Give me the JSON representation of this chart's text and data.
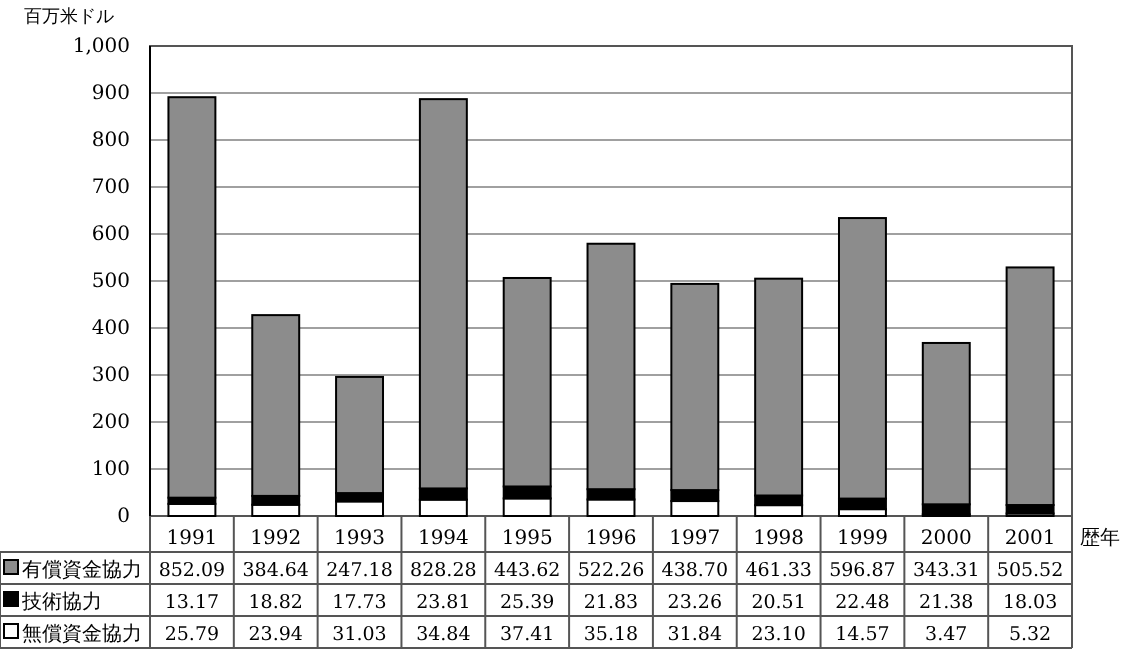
{
  "chart_data": {
    "type": "bar",
    "stacked": true,
    "ylabel": "百万米ドル",
    "xlabel": "歴年",
    "categories": [
      "1991",
      "1992",
      "1993",
      "1994",
      "1995",
      "1996",
      "1997",
      "1998",
      "1999",
      "2000",
      "2001"
    ],
    "series": [
      {
        "name": "無償資金協力",
        "color": "#ffffff",
        "values": [
          25.79,
          23.94,
          31.03,
          34.84,
          37.41,
          35.18,
          31.84,
          23.1,
          14.57,
          3.47,
          5.32
        ],
        "value_labels": [
          "25.79",
          "23.94",
          "31.03",
          "34.84",
          "37.41",
          "35.18",
          "31.84",
          "23.10",
          "14.57",
          "3.47",
          "5.32"
        ]
      },
      {
        "name": "技術協力",
        "color": "#000000",
        "values": [
          13.17,
          18.82,
          17.73,
          23.81,
          25.39,
          21.83,
          23.26,
          20.51,
          22.48,
          21.38,
          18.03
        ],
        "value_labels": [
          "13.17",
          "18.82",
          "17.73",
          "23.81",
          "25.39",
          "21.83",
          "23.26",
          "20.51",
          "22.48",
          "21.38",
          "18.03"
        ]
      },
      {
        "name": "有償資金協力",
        "color": "#8c8c8c",
        "values": [
          852.09,
          384.64,
          247.18,
          828.28,
          443.62,
          522.26,
          438.7,
          461.33,
          596.87,
          343.31,
          505.52
        ],
        "value_labels": [
          "852.09",
          "384.64",
          "247.18",
          "828.28",
          "443.62",
          "522.26",
          "438.70",
          "461.33",
          "596.87",
          "343.31",
          "505.52"
        ]
      }
    ],
    "ylim": [
      0,
      1000
    ],
    "yticks": [
      0,
      100,
      200,
      300,
      400,
      500,
      600,
      700,
      800,
      900,
      {
        "value": 1000,
        "label": "1,000"
      }
    ],
    "grid": "y",
    "legend": "bottom"
  }
}
